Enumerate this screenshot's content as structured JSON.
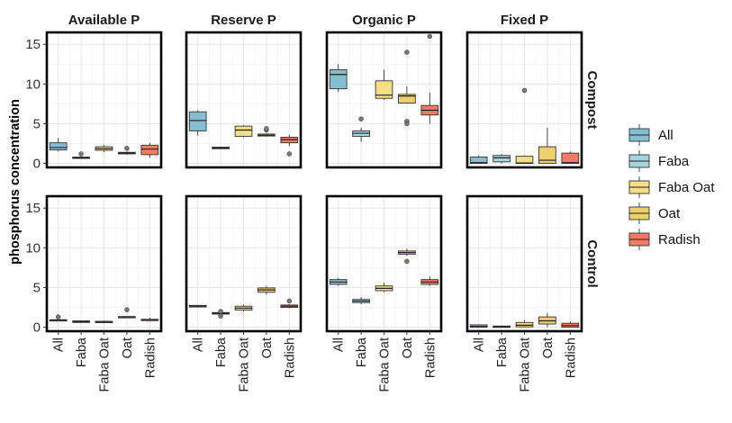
{
  "chart_data": {
    "type": "boxplot",
    "ylabel": "phosphorus concentration",
    "ylim": [
      -0.5,
      16.5
    ],
    "yticks": [
      0,
      5,
      10,
      15
    ],
    "grid": true,
    "legend_position": "right",
    "columns": [
      "Available P",
      "Reserve P",
      "Organic P",
      "Fixed P"
    ],
    "rows": [
      "Compost",
      "Control"
    ],
    "categories": [
      "All",
      "Faba",
      "Faba Oat",
      "Oat",
      "Radish"
    ],
    "colors": {
      "All": "#86bdd0",
      "Faba": "#a9d3df",
      "Faba Oat": "#f4df86",
      "Oat": "#ead070",
      "Radish": "#f07c66"
    },
    "legend": [
      "All",
      "Faba",
      "Faba Oat",
      "Oat",
      "Radish"
    ],
    "panels": [
      {
        "row": "Compost",
        "col": "Available P",
        "boxes": [
          {
            "cat": "All",
            "min": 1.5,
            "q1": 1.7,
            "med": 2.0,
            "q3": 2.6,
            "max": 3.2,
            "out": []
          },
          {
            "cat": "Faba",
            "min": 0.6,
            "q1": 0.65,
            "med": 0.7,
            "q3": 0.8,
            "max": 0.9,
            "out": [
              1.2
            ]
          },
          {
            "cat": "Faba Oat",
            "min": 1.4,
            "q1": 1.65,
            "med": 1.85,
            "q3": 2.1,
            "max": 2.3,
            "out": []
          },
          {
            "cat": "Oat",
            "min": 1.1,
            "q1": 1.2,
            "med": 1.3,
            "q3": 1.4,
            "max": 1.5,
            "out": [
              1.9
            ]
          },
          {
            "cat": "Radish",
            "min": 0.7,
            "q1": 1.1,
            "med": 1.8,
            "q3": 2.3,
            "max": 2.6,
            "out": []
          }
        ]
      },
      {
        "row": "Compost",
        "col": "Reserve P",
        "boxes": [
          {
            "cat": "All",
            "min": 3.5,
            "q1": 4.1,
            "med": 5.4,
            "q3": 6.5,
            "max": 6.7,
            "out": []
          },
          {
            "cat": "Faba",
            "min": 1.8,
            "q1": 1.85,
            "med": 1.95,
            "q3": 2.05,
            "max": 2.1,
            "out": []
          },
          {
            "cat": "Faba Oat",
            "min": 3.3,
            "q1": 3.4,
            "med": 4.2,
            "q3": 4.7,
            "max": 4.8,
            "out": []
          },
          {
            "cat": "Oat",
            "min": 3.4,
            "q1": 3.45,
            "med": 3.55,
            "q3": 3.7,
            "max": 3.8,
            "out": [
              4.2,
              4.4
            ]
          },
          {
            "cat": "Radish",
            "min": 2.2,
            "q1": 2.6,
            "med": 3.0,
            "q3": 3.3,
            "max": 3.6,
            "out": [
              1.2
            ]
          }
        ]
      },
      {
        "row": "Compost",
        "col": "Organic P",
        "boxes": [
          {
            "cat": "All",
            "min": 9.0,
            "q1": 9.4,
            "med": 11.2,
            "q3": 11.8,
            "max": 12.5,
            "out": []
          },
          {
            "cat": "Faba",
            "min": 2.7,
            "q1": 3.4,
            "med": 3.8,
            "q3": 4.1,
            "max": 4.5,
            "out": [
              5.6
            ]
          },
          {
            "cat": "Faba Oat",
            "min": 8.0,
            "q1": 8.2,
            "med": 8.6,
            "q3": 10.4,
            "max": 11.8,
            "out": []
          },
          {
            "cat": "Oat",
            "min": 7.6,
            "q1": 7.6,
            "med": 8.5,
            "q3": 8.7,
            "max": 9.7,
            "out": [
              14.0,
              5.3,
              5.0
            ]
          },
          {
            "cat": "Radish",
            "min": 5.0,
            "q1": 6.1,
            "med": 6.7,
            "q3": 7.3,
            "max": 8.9,
            "out": [
              16.0
            ]
          }
        ]
      },
      {
        "row": "Compost",
        "col": "Fixed P",
        "boxes": [
          {
            "cat": "All",
            "min": 0.0,
            "q1": 0.0,
            "med": 0.1,
            "q3": 0.8,
            "max": 1.0,
            "out": []
          },
          {
            "cat": "Faba",
            "min": 0.0,
            "q1": 0.2,
            "med": 0.7,
            "q3": 1.0,
            "max": 1.2,
            "out": []
          },
          {
            "cat": "Faba Oat",
            "min": 0.0,
            "q1": 0.0,
            "med": 0.05,
            "q3": 0.9,
            "max": 1.0,
            "out": [
              9.2
            ]
          },
          {
            "cat": "Oat",
            "min": 0.0,
            "q1": 0.0,
            "med": 0.4,
            "q3": 2.1,
            "max": 4.5,
            "out": []
          },
          {
            "cat": "Radish",
            "min": 0.0,
            "q1": 0.0,
            "med": 0.1,
            "q3": 1.3,
            "max": 1.5,
            "out": []
          }
        ]
      },
      {
        "row": "Control",
        "col": "Available P",
        "boxes": [
          {
            "cat": "All",
            "min": 0.75,
            "q1": 0.8,
            "med": 0.9,
            "q3": 0.95,
            "max": 1.0,
            "out": [
              1.3
            ]
          },
          {
            "cat": "Faba",
            "min": 0.55,
            "q1": 0.6,
            "med": 0.7,
            "q3": 0.8,
            "max": 0.85,
            "out": []
          },
          {
            "cat": "Faba Oat",
            "min": 0.55,
            "q1": 0.6,
            "med": 0.65,
            "q3": 0.75,
            "max": 0.85,
            "out": []
          },
          {
            "cat": "Oat",
            "min": 1.2,
            "q1": 1.25,
            "med": 1.3,
            "q3": 1.35,
            "max": 1.4,
            "out": [
              2.2
            ]
          },
          {
            "cat": "Radish",
            "min": 0.8,
            "q1": 0.85,
            "med": 0.95,
            "q3": 1.0,
            "max": 1.2,
            "out": []
          }
        ]
      },
      {
        "row": "Control",
        "col": "Reserve P",
        "boxes": [
          {
            "cat": "All",
            "min": 2.5,
            "q1": 2.55,
            "med": 2.65,
            "q3": 2.75,
            "max": 2.8,
            "out": []
          },
          {
            "cat": "Faba",
            "min": 1.55,
            "q1": 1.65,
            "med": 1.75,
            "q3": 1.85,
            "max": 1.95,
            "out": [
              1.4,
              2.0
            ]
          },
          {
            "cat": "Faba Oat",
            "min": 2.0,
            "q1": 2.15,
            "med": 2.4,
            "q3": 2.65,
            "max": 2.85,
            "out": []
          },
          {
            "cat": "Oat",
            "min": 4.1,
            "q1": 4.4,
            "med": 4.7,
            "q3": 4.95,
            "max": 5.2,
            "out": []
          },
          {
            "cat": "Radish",
            "min": 2.4,
            "q1": 2.5,
            "med": 2.65,
            "q3": 2.8,
            "max": 2.9,
            "out": [
              3.3
            ]
          }
        ]
      },
      {
        "row": "Control",
        "col": "Organic P",
        "boxes": [
          {
            "cat": "All",
            "min": 5.2,
            "q1": 5.4,
            "med": 5.7,
            "q3": 6.0,
            "max": 6.2,
            "out": []
          },
          {
            "cat": "Faba",
            "min": 2.9,
            "q1": 3.1,
            "med": 3.3,
            "q3": 3.5,
            "max": 3.8,
            "out": []
          },
          {
            "cat": "Faba Oat",
            "min": 4.4,
            "q1": 4.6,
            "med": 4.9,
            "q3": 5.2,
            "max": 5.6,
            "out": []
          },
          {
            "cat": "Oat",
            "min": 9.0,
            "q1": 9.2,
            "med": 9.4,
            "q3": 9.6,
            "max": 9.9,
            "out": [
              8.3
            ]
          },
          {
            "cat": "Radish",
            "min": 5.2,
            "q1": 5.4,
            "med": 5.7,
            "q3": 6.0,
            "max": 6.4,
            "out": []
          }
        ]
      },
      {
        "row": "Control",
        "col": "Fixed P",
        "boxes": [
          {
            "cat": "All",
            "min": 0.0,
            "q1": 0.0,
            "med": 0.1,
            "q3": 0.3,
            "max": 0.35,
            "out": []
          },
          {
            "cat": "Faba",
            "min": 0.0,
            "q1": 0.0,
            "med": 0.05,
            "q3": 0.15,
            "max": 0.2,
            "out": []
          },
          {
            "cat": "Faba Oat",
            "min": 0.0,
            "q1": 0.05,
            "med": 0.25,
            "q3": 0.6,
            "max": 0.9,
            "out": []
          },
          {
            "cat": "Oat",
            "min": 0.0,
            "q1": 0.4,
            "med": 0.8,
            "q3": 1.3,
            "max": 1.8,
            "out": []
          },
          {
            "cat": "Radish",
            "min": 0.0,
            "q1": 0.0,
            "med": 0.2,
            "q3": 0.5,
            "max": 0.7,
            "out": []
          }
        ]
      }
    ]
  }
}
